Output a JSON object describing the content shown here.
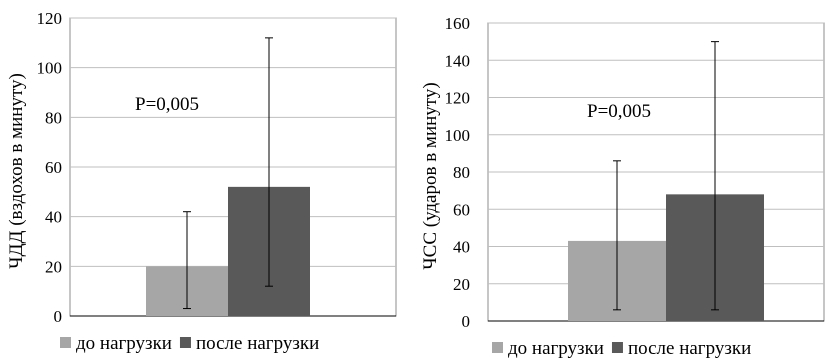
{
  "chart_data": [
    {
      "type": "bar",
      "categories": [
        ""
      ],
      "series": [
        {
          "name": "до нагрузки",
          "values": [
            20
          ],
          "error_low": [
            3
          ],
          "error_high": [
            42
          ],
          "color": "#a6a6a6"
        },
        {
          "name": "после нагрузки",
          "values": [
            52
          ],
          "error_low": [
            12
          ],
          "error_high": [
            112
          ],
          "color": "#595959"
        }
      ],
      "title": "",
      "xlabel": "",
      "ylabel": "ЧДД (вздохов в минуту)",
      "ylim": [
        0,
        120
      ],
      "yticks": [
        0,
        20,
        40,
        60,
        80,
        100,
        120
      ],
      "annotation": "P=0,005",
      "grid": true,
      "legend": "bottom"
    },
    {
      "type": "bar",
      "categories": [
        ""
      ],
      "series": [
        {
          "name": "до нагрузки",
          "values": [
            43
          ],
          "error_low": [
            6
          ],
          "error_high": [
            86
          ],
          "color": "#a6a6a6"
        },
        {
          "name": "после нагрузки",
          "values": [
            68
          ],
          "error_low": [
            6
          ],
          "error_high": [
            150
          ],
          "color": "#595959"
        }
      ],
      "title": "",
      "xlabel": "",
      "ylabel": "ЧСС (ударов в минуту)",
      "ylim": [
        0,
        160
      ],
      "yticks": [
        0,
        20,
        40,
        60,
        80,
        100,
        120,
        140,
        160
      ],
      "annotation": "P=0,005",
      "grid": true,
      "legend": "bottom"
    }
  ]
}
